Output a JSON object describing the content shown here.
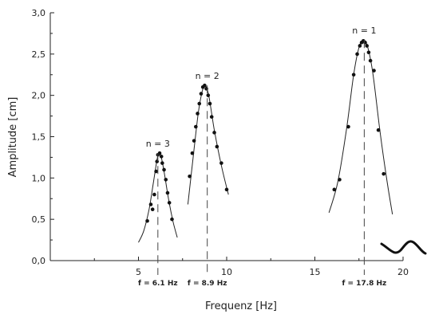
{
  "chart_data": {
    "type": "scatter",
    "title": "",
    "xlabel": "Frequenz [Hz]",
    "ylabel": "Amplitude [cm]",
    "xlim": [
      0,
      20
    ],
    "ylim": [
      0,
      3.0
    ],
    "x_ticks": [
      5,
      10,
      15,
      20
    ],
    "y_ticks": [
      {
        "value": 0.0,
        "label": "0,0"
      },
      {
        "value": 0.5,
        "label": "0,5"
      },
      {
        "value": 1.0,
        "label": "1,0"
      },
      {
        "value": 1.5,
        "label": "1,5"
      },
      {
        "value": 2.0,
        "label": "2,0"
      },
      {
        "value": 2.5,
        "label": "2,5"
      },
      {
        "value": 3.0,
        "label": "3,0"
      }
    ],
    "grid": false,
    "series": [
      {
        "points": [
          [
            5.5,
            0.48
          ],
          [
            5.7,
            0.68
          ],
          [
            5.8,
            0.62
          ],
          [
            5.9,
            0.8
          ],
          [
            6.0,
            1.08
          ],
          [
            6.05,
            1.2
          ],
          [
            6.1,
            1.28
          ],
          [
            6.2,
            1.3
          ],
          [
            6.3,
            1.26
          ],
          [
            6.35,
            1.18
          ],
          [
            6.45,
            1.1
          ],
          [
            6.55,
            0.98
          ],
          [
            6.65,
            0.82
          ],
          [
            6.75,
            0.7
          ],
          [
            6.9,
            0.5
          ]
        ],
        "fit": [
          [
            5.0,
            0.22
          ],
          [
            5.3,
            0.36
          ],
          [
            5.6,
            0.62
          ],
          [
            5.85,
            0.95
          ],
          [
            6.05,
            1.22
          ],
          [
            6.15,
            1.3
          ],
          [
            6.25,
            1.29
          ],
          [
            6.45,
            1.08
          ],
          [
            6.7,
            0.75
          ],
          [
            6.95,
            0.48
          ],
          [
            7.2,
            0.28
          ]
        ]
      },
      {
        "points": [
          [
            7.9,
            1.02
          ],
          [
            8.05,
            1.3
          ],
          [
            8.15,
            1.45
          ],
          [
            8.25,
            1.62
          ],
          [
            8.35,
            1.78
          ],
          [
            8.45,
            1.9
          ],
          [
            8.55,
            2.02
          ],
          [
            8.65,
            2.1
          ],
          [
            8.75,
            2.12
          ],
          [
            8.85,
            2.08
          ],
          [
            8.95,
            2.0
          ],
          [
            9.05,
            1.9
          ],
          [
            9.15,
            1.74
          ],
          [
            9.3,
            1.55
          ],
          [
            9.45,
            1.38
          ],
          [
            9.7,
            1.18
          ],
          [
            10.0,
            0.86
          ]
        ],
        "fit": [
          [
            7.8,
            0.68
          ],
          [
            8.1,
            1.25
          ],
          [
            8.4,
            1.8
          ],
          [
            8.65,
            2.08
          ],
          [
            8.8,
            2.12
          ],
          [
            9.0,
            1.98
          ],
          [
            9.3,
            1.58
          ],
          [
            9.7,
            1.15
          ],
          [
            10.1,
            0.8
          ]
        ]
      },
      {
        "points": [
          [
            16.1,
            0.86
          ],
          [
            16.4,
            0.98
          ],
          [
            16.9,
            1.62
          ],
          [
            17.2,
            2.25
          ],
          [
            17.4,
            2.5
          ],
          [
            17.55,
            2.6
          ],
          [
            17.65,
            2.64
          ],
          [
            17.75,
            2.66
          ],
          [
            17.85,
            2.64
          ],
          [
            17.95,
            2.6
          ],
          [
            18.05,
            2.52
          ],
          [
            18.15,
            2.42
          ],
          [
            18.35,
            2.3
          ],
          [
            18.6,
            1.58
          ],
          [
            18.9,
            1.05
          ]
        ],
        "fit": [
          [
            15.8,
            0.58
          ],
          [
            16.3,
            0.95
          ],
          [
            16.8,
            1.6
          ],
          [
            17.2,
            2.25
          ],
          [
            17.5,
            2.58
          ],
          [
            17.75,
            2.67
          ],
          [
            18.0,
            2.58
          ],
          [
            18.3,
            2.25
          ],
          [
            18.7,
            1.55
          ],
          [
            19.1,
            0.95
          ],
          [
            19.4,
            0.56
          ]
        ]
      }
    ],
    "resonances": [
      {
        "f": 6.1,
        "peak": 1.3,
        "mode_label": "n = 3",
        "freq_label": "f = 6.1 Hz"
      },
      {
        "f": 8.9,
        "peak": 2.12,
        "mode_label": "n = 2",
        "freq_label": "f = 8.9 Hz"
      },
      {
        "f": 17.8,
        "peak": 2.67,
        "mode_label": "n = 1",
        "freq_label": "f = 17.8 Hz"
      }
    ]
  }
}
